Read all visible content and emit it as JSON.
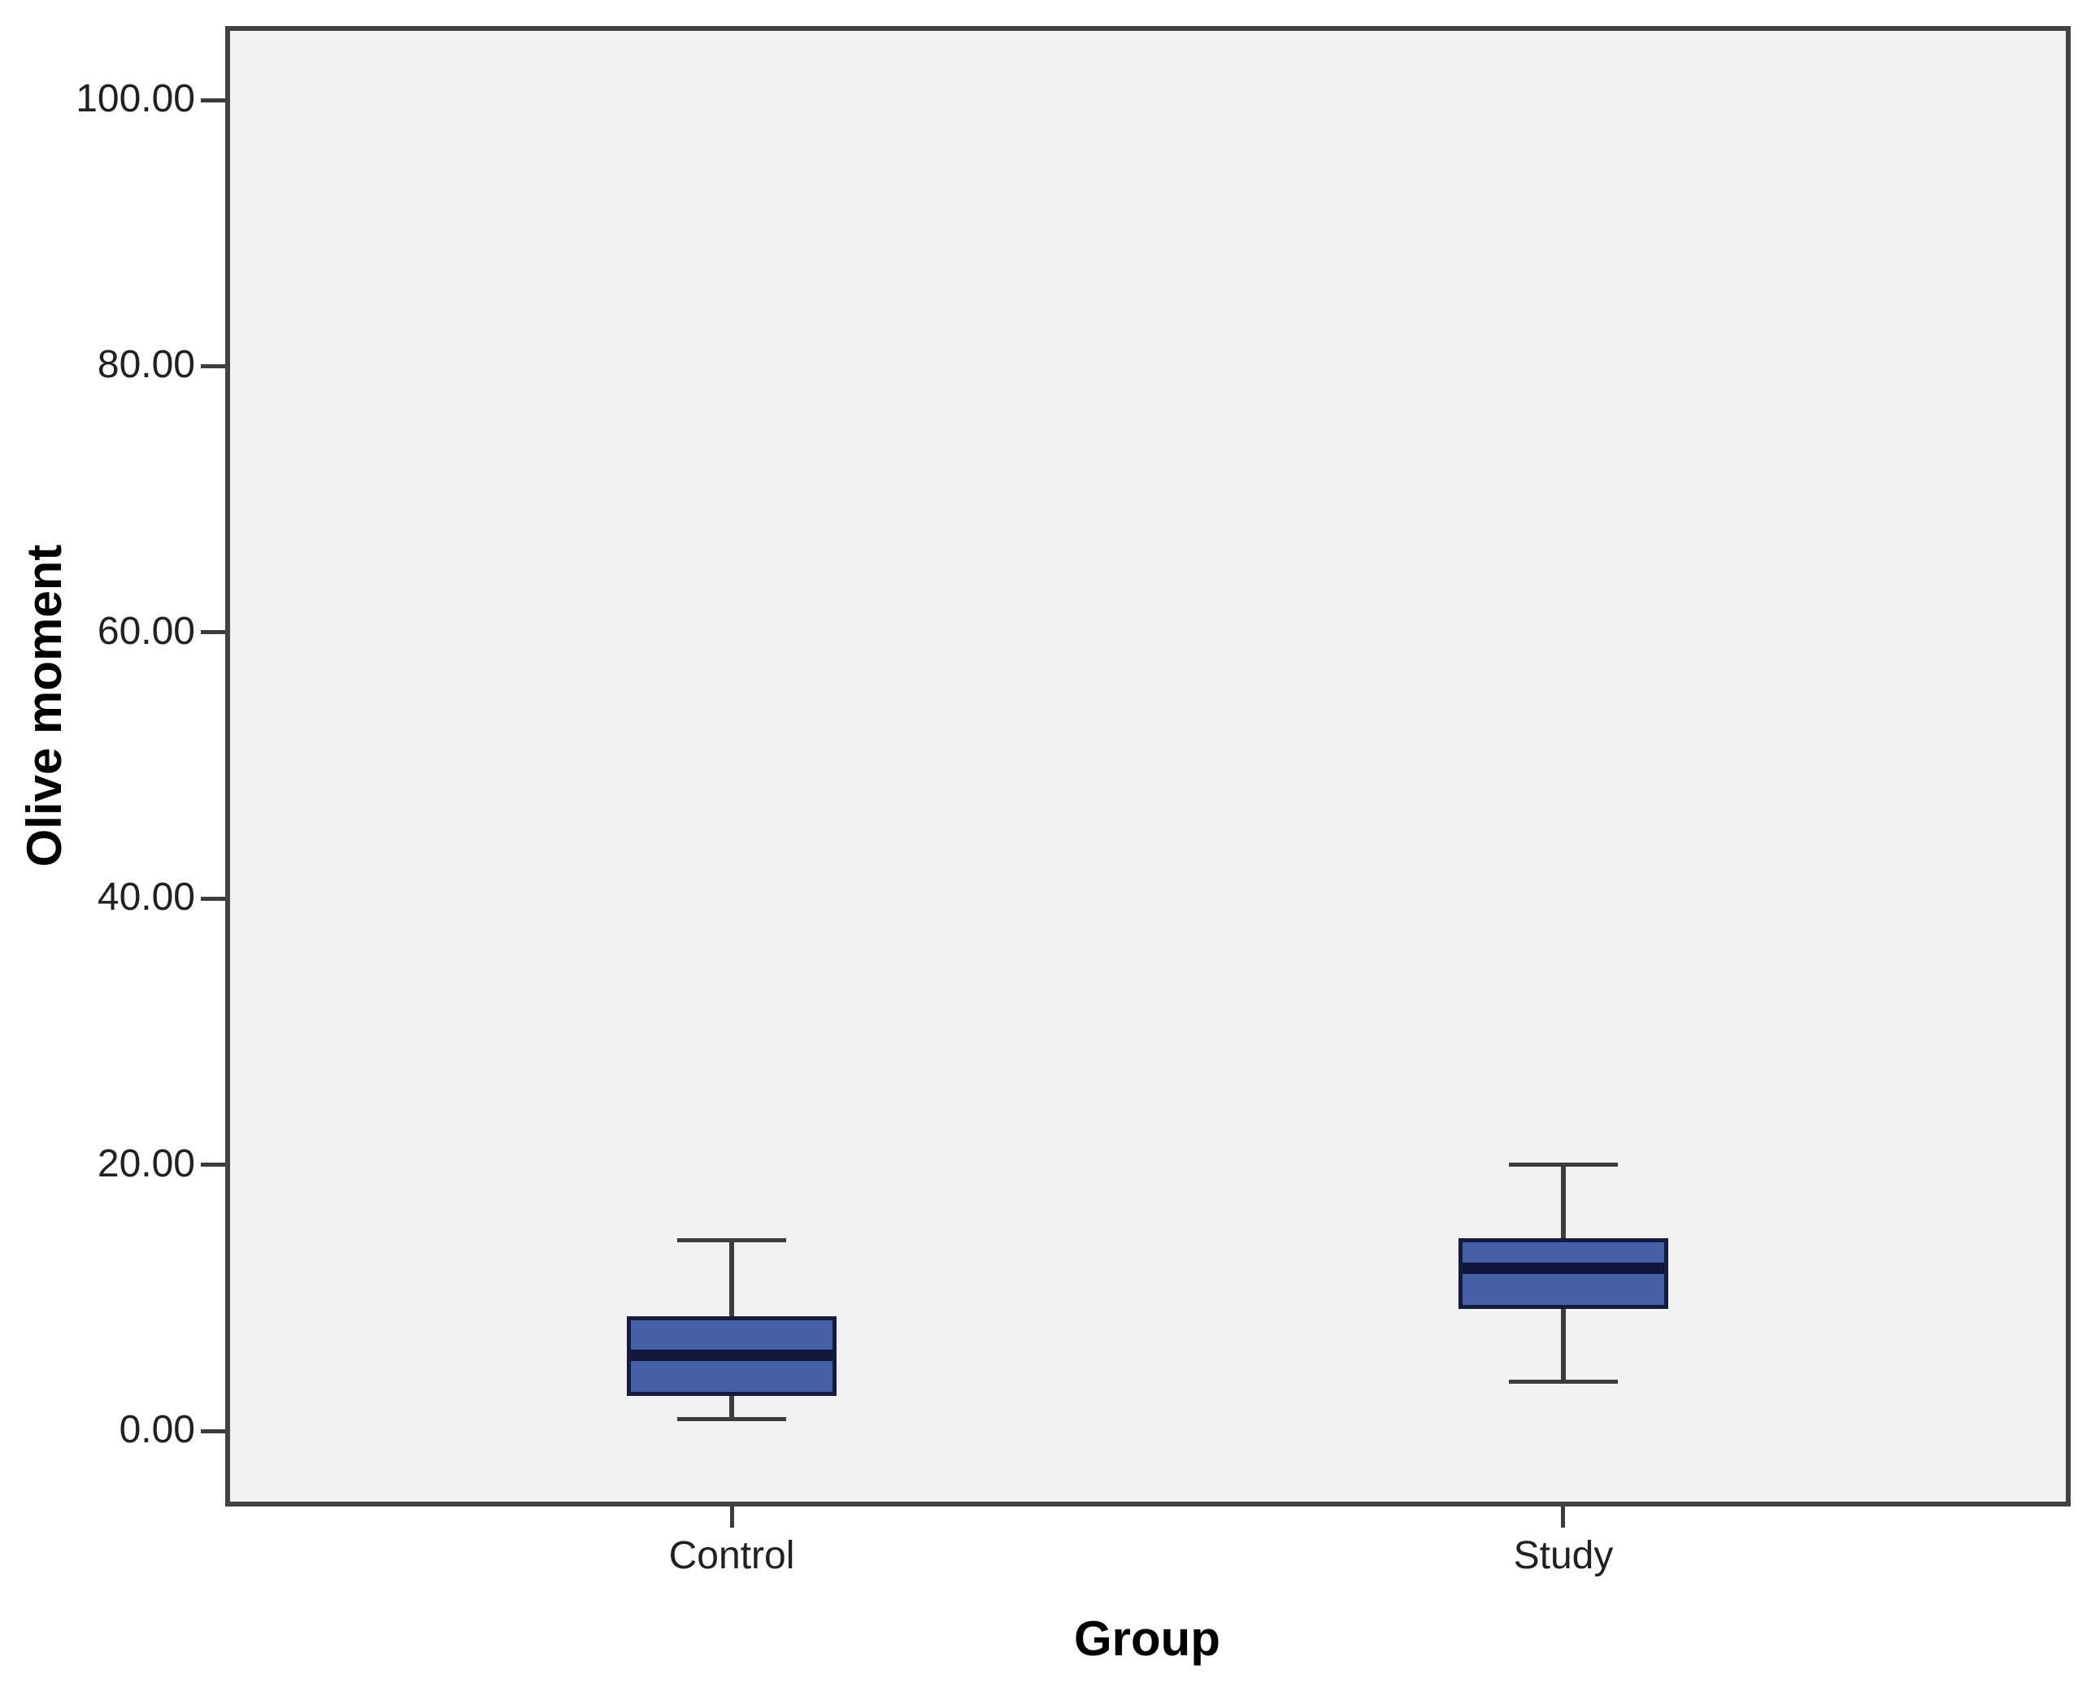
{
  "chart_data": {
    "type": "boxplot",
    "title": "",
    "xlabel": "Group",
    "ylabel": "Olive moment",
    "categories": [
      "Control",
      "Study"
    ],
    "series": [
      {
        "name": "Control",
        "whisker_low": 0.9,
        "q1": 2.6,
        "median": 5.7,
        "q3": 8.6,
        "whisker_high": 14.3
      },
      {
        "name": "Study",
        "whisker_low": 3.7,
        "q1": 9.2,
        "median": 12.2,
        "q3": 14.5,
        "whisker_high": 20.0
      }
    ],
    "y_axis": {
      "min": 0,
      "max": 100,
      "ticks": [
        {
          "value": 0,
          "label": "0.00"
        },
        {
          "value": 20,
          "label": "20.00"
        },
        {
          "value": 40,
          "label": "40.00"
        },
        {
          "value": 60,
          "label": "60.00"
        },
        {
          "value": 80,
          "label": "80.00"
        },
        {
          "value": 100,
          "label": "100.00"
        }
      ]
    },
    "grid": false,
    "legend": "none",
    "outliers": []
  },
  "colors": {
    "box_fill": "#4660a8",
    "box_border": "#151c3e",
    "median_line": "#10173a",
    "whisker": "#3c3c3c",
    "tick": "#3c3c3c",
    "tick_text": "#212121",
    "axis_title_text": "#000000",
    "plot_background": "#f1f2f1",
    "plot_border": "#424242",
    "page_background": "#fefefe"
  }
}
